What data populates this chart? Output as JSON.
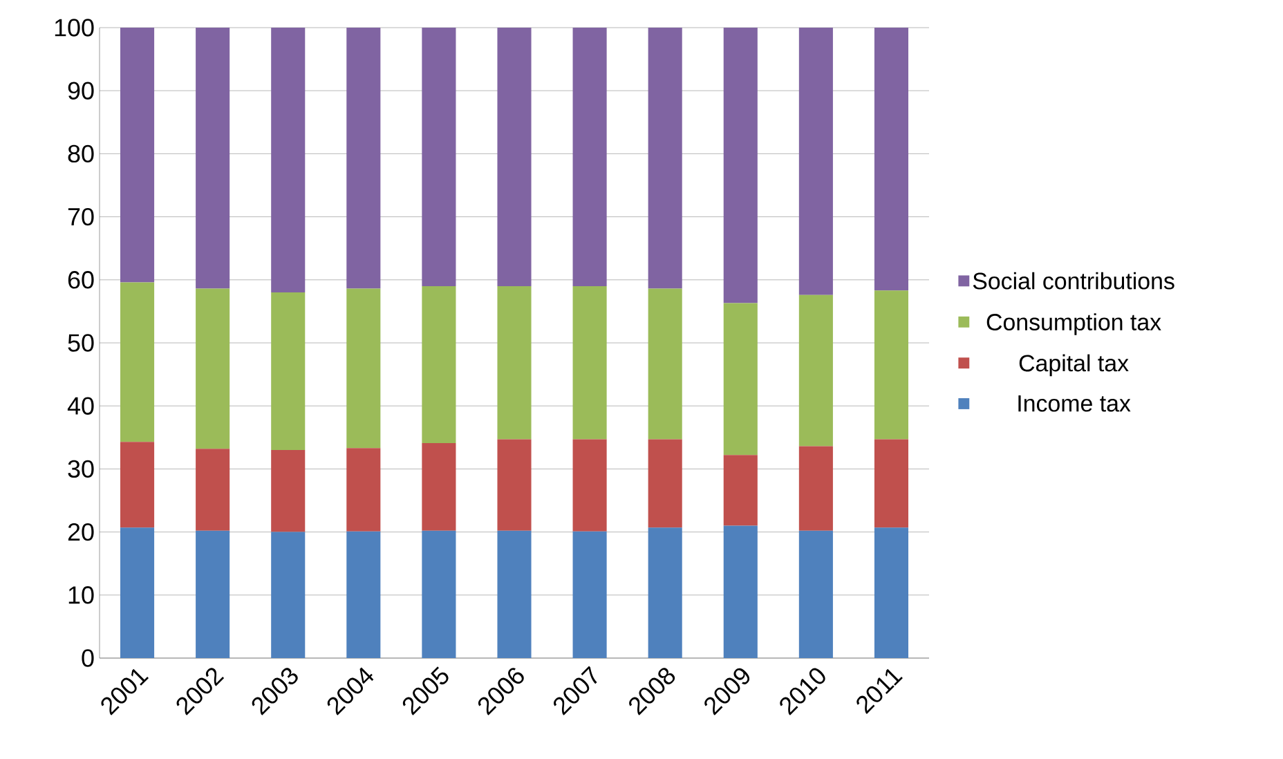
{
  "chart_data": {
    "type": "bar",
    "stacked": true,
    "categories": [
      "2001",
      "2002",
      "2003",
      "2004",
      "2005",
      "2006",
      "2007",
      "2008",
      "2009",
      "2010",
      "2011"
    ],
    "series": [
      {
        "name": "Income tax",
        "color": "#4f81bd",
        "values": [
          20.7,
          20.2,
          20.0,
          20.1,
          20.2,
          20.2,
          20.1,
          20.7,
          21.0,
          20.2,
          20.7
        ]
      },
      {
        "name": "Capital tax",
        "color": "#c0504d",
        "values": [
          13.6,
          13.0,
          13.0,
          13.2,
          13.9,
          14.5,
          14.6,
          14.0,
          11.2,
          13.4,
          14.0
        ]
      },
      {
        "name": "Consumption tax",
        "color": "#9bbb59",
        "values": [
          25.3,
          25.4,
          25.0,
          25.3,
          24.9,
          24.3,
          24.3,
          23.9,
          24.1,
          24.0,
          23.6
        ]
      },
      {
        "name": "Social contributions",
        "color": "#8064a2",
        "values": [
          40.4,
          41.4,
          42.0,
          41.4,
          41.0,
          41.0,
          41.0,
          41.4,
          43.7,
          42.4,
          41.7
        ]
      }
    ],
    "ylim": [
      0,
      100
    ],
    "yticks": [
      0,
      10,
      20,
      30,
      40,
      50,
      60,
      70,
      80,
      90,
      100
    ],
    "grid": "y",
    "legend": "right"
  }
}
